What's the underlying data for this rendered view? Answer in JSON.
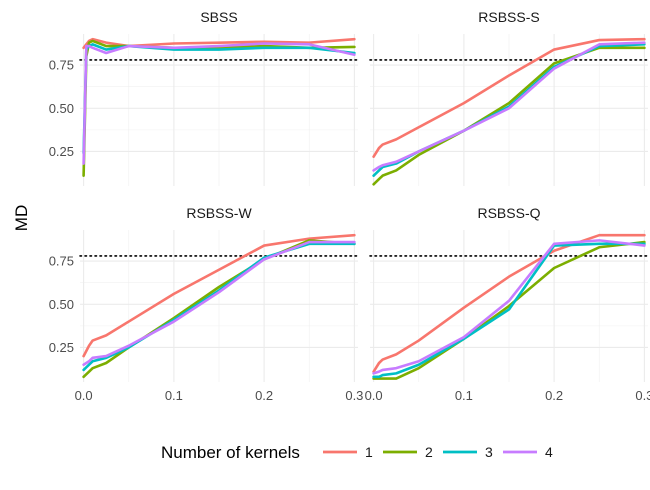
{
  "chart_data": {
    "type": "line",
    "layout": "facet_2x2",
    "ylabel": "MD",
    "xlim": [
      -0.004,
      0.304
    ],
    "ylim": [
      0.05,
      0.93
    ],
    "x_ticks": [
      0.0,
      0.1,
      0.2,
      0.3
    ],
    "x_tick_labels": [
      "0.0",
      "0.1",
      "0.2",
      "0.3"
    ],
    "y_ticks": [
      0.25,
      0.5,
      0.75
    ],
    "y_tick_labels": [
      "0.25",
      "0.50",
      "0.75"
    ],
    "reference_line": {
      "y": 0.78,
      "style": "dotted",
      "color": "#000000"
    },
    "grid": true,
    "legend": {
      "title": "Number of kernels",
      "placement": "bottom",
      "entries": [
        {
          "label": "1",
          "color": "#F8766D"
        },
        {
          "label": "2",
          "color": "#7CAE00"
        },
        {
          "label": "3",
          "color": "#00BFC4"
        },
        {
          "label": "4",
          "color": "#C77CFF"
        }
      ]
    },
    "panels": [
      {
        "title": "SBSS",
        "series": [
          {
            "name": "1",
            "color": "#F8766D",
            "x": [
              0,
              0.003,
              0.006,
              0.01,
              0.025,
              0.05,
              0.1,
              0.15,
              0.2,
              0.25,
              0.3
            ],
            "y": [
              0.85,
              0.87,
              0.89,
              0.9,
              0.88,
              0.86,
              0.875,
              0.88,
              0.885,
              0.88,
              0.9
            ]
          },
          {
            "name": "2",
            "color": "#7CAE00",
            "x": [
              0,
              0.003,
              0.006,
              0.01,
              0.025,
              0.05,
              0.1,
              0.15,
              0.2,
              0.25,
              0.3
            ],
            "y": [
              0.11,
              0.8,
              0.88,
              0.89,
              0.86,
              0.86,
              0.85,
              0.85,
              0.86,
              0.85,
              0.855
            ]
          },
          {
            "name": "3",
            "color": "#00BFC4",
            "x": [
              0,
              0.003,
              0.006,
              0.01,
              0.025,
              0.05,
              0.1,
              0.15,
              0.2,
              0.25,
              0.3
            ],
            "y": [
              0.24,
              0.84,
              0.86,
              0.87,
              0.84,
              0.86,
              0.84,
              0.84,
              0.85,
              0.85,
              0.82
            ]
          },
          {
            "name": "4",
            "color": "#C77CFF",
            "x": [
              0,
              0.003,
              0.006,
              0.01,
              0.025,
              0.05,
              0.1,
              0.15,
              0.2,
              0.25,
              0.3
            ],
            "y": [
              0.18,
              0.86,
              0.86,
              0.85,
              0.82,
              0.86,
              0.85,
              0.86,
              0.875,
              0.87,
              0.81
            ]
          }
        ]
      },
      {
        "title": "RSBSS-S",
        "series": [
          {
            "name": "1",
            "color": "#F8766D",
            "x": [
              0,
              0.006,
              0.01,
              0.025,
              0.05,
              0.1,
              0.15,
              0.2,
              0.25,
              0.3
            ],
            "y": [
              0.22,
              0.27,
              0.29,
              0.32,
              0.39,
              0.53,
              0.69,
              0.84,
              0.895,
              0.9
            ]
          },
          {
            "name": "2",
            "color": "#7CAE00",
            "x": [
              0,
              0.006,
              0.01,
              0.025,
              0.05,
              0.1,
              0.15,
              0.2,
              0.25,
              0.3
            ],
            "y": [
              0.06,
              0.09,
              0.11,
              0.14,
              0.23,
              0.37,
              0.53,
              0.76,
              0.85,
              0.85
            ]
          },
          {
            "name": "3",
            "color": "#00BFC4",
            "x": [
              0,
              0.006,
              0.01,
              0.025,
              0.05,
              0.1,
              0.15,
              0.2,
              0.25,
              0.3
            ],
            "y": [
              0.11,
              0.14,
              0.16,
              0.18,
              0.25,
              0.37,
              0.51,
              0.74,
              0.86,
              0.87
            ]
          },
          {
            "name": "4",
            "color": "#C77CFF",
            "x": [
              0,
              0.006,
              0.01,
              0.025,
              0.05,
              0.1,
              0.15,
              0.2,
              0.25,
              0.3
            ],
            "y": [
              0.14,
              0.16,
              0.17,
              0.19,
              0.25,
              0.37,
              0.5,
              0.73,
              0.87,
              0.88
            ]
          }
        ]
      },
      {
        "title": "RSBSS-W",
        "series": [
          {
            "name": "1",
            "color": "#F8766D",
            "x": [
              0,
              0.006,
              0.01,
              0.025,
              0.05,
              0.1,
              0.15,
              0.2,
              0.25,
              0.3
            ],
            "y": [
              0.2,
              0.26,
              0.29,
              0.32,
              0.4,
              0.56,
              0.7,
              0.84,
              0.88,
              0.9
            ]
          },
          {
            "name": "2",
            "color": "#7CAE00",
            "x": [
              0,
              0.006,
              0.01,
              0.025,
              0.05,
              0.1,
              0.15,
              0.2,
              0.25,
              0.3
            ],
            "y": [
              0.08,
              0.11,
              0.13,
              0.16,
              0.25,
              0.42,
              0.6,
              0.76,
              0.87,
              0.85
            ]
          },
          {
            "name": "3",
            "color": "#00BFC4",
            "x": [
              0,
              0.006,
              0.01,
              0.025,
              0.05,
              0.1,
              0.15,
              0.2,
              0.25,
              0.3
            ],
            "y": [
              0.12,
              0.15,
              0.17,
              0.19,
              0.25,
              0.41,
              0.58,
              0.77,
              0.85,
              0.85
            ]
          },
          {
            "name": "4",
            "color": "#C77CFF",
            "x": [
              0,
              0.006,
              0.01,
              0.025,
              0.05,
              0.1,
              0.15,
              0.2,
              0.25,
              0.3
            ],
            "y": [
              0.15,
              0.17,
              0.19,
              0.2,
              0.26,
              0.4,
              0.57,
              0.76,
              0.86,
              0.86
            ]
          }
        ]
      },
      {
        "title": "RSBSS-Q",
        "series": [
          {
            "name": "1",
            "color": "#F8766D",
            "x": [
              0,
              0.006,
              0.01,
              0.025,
              0.05,
              0.1,
              0.15,
              0.2,
              0.25,
              0.3
            ],
            "y": [
              0.11,
              0.16,
              0.18,
              0.21,
              0.29,
              0.48,
              0.66,
              0.81,
              0.9,
              0.9
            ]
          },
          {
            "name": "2",
            "color": "#7CAE00",
            "x": [
              0,
              0.006,
              0.01,
              0.025,
              0.05,
              0.1,
              0.15,
              0.2,
              0.25,
              0.3
            ],
            "y": [
              0.07,
              0.07,
              0.07,
              0.07,
              0.13,
              0.3,
              0.49,
              0.71,
              0.83,
              0.86
            ]
          },
          {
            "name": "3",
            "color": "#00BFC4",
            "x": [
              0,
              0.006,
              0.01,
              0.025,
              0.05,
              0.1,
              0.15,
              0.2,
              0.25,
              0.3
            ],
            "y": [
              0.08,
              0.08,
              0.09,
              0.1,
              0.15,
              0.3,
              0.47,
              0.84,
              0.85,
              0.85
            ]
          },
          {
            "name": "4",
            "color": "#C77CFF",
            "x": [
              0,
              0.006,
              0.01,
              0.025,
              0.05,
              0.1,
              0.15,
              0.2,
              0.25,
              0.3
            ],
            "y": [
              0.1,
              0.11,
              0.12,
              0.13,
              0.17,
              0.31,
              0.52,
              0.85,
              0.87,
              0.84
            ]
          }
        ]
      }
    ]
  }
}
